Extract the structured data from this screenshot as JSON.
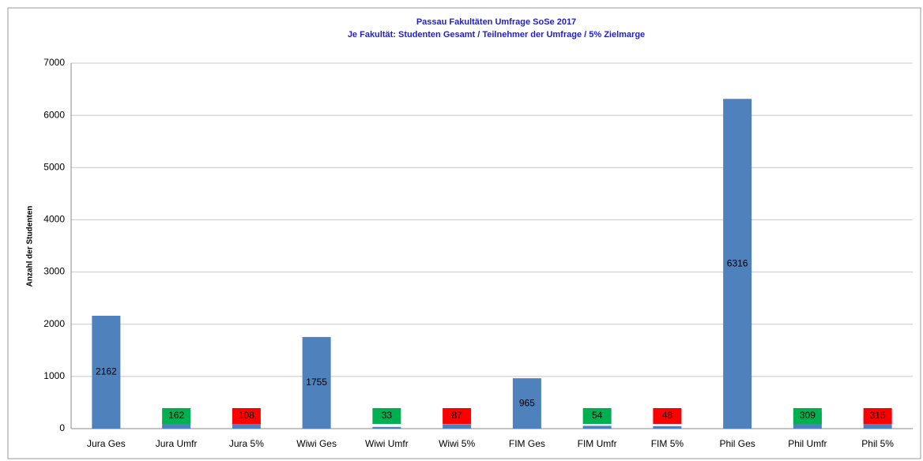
{
  "chart_data": {
    "type": "bar",
    "title": "Passau Fakultäten Umfrage SoSe 2017",
    "subtitle": "Je Fakultät:  Studenten Gesamt / Teilnehmer der Umfrage / 5% Zielmarge",
    "y_label": "Anzahl der Studenten",
    "categories": [
      "Jura Ges",
      "Jura Umfr",
      "Jura 5%",
      "Wiwi Ges",
      "Wiwi Umfr",
      "Wiwi 5%",
      "FIM Ges",
      "FIM Umfr",
      "FIM 5%",
      "Phil Ges",
      "Phil Umfr",
      "Phil 5%"
    ],
    "values": [
      2162,
      162,
      108,
      1755,
      33,
      87,
      965,
      54,
      48,
      6316,
      309,
      315
    ],
    "color": "#4f81bd",
    "value_label_colors": [
      null,
      "#00b050",
      "#ff0000",
      null,
      "#00b050",
      "#ff0000",
      null,
      "#00b050",
      "#ff0000",
      null,
      "#00b050",
      "#ff0000"
    ],
    "ylim": [
      0,
      7000
    ],
    "yticks": [
      0,
      1000,
      2000,
      3000,
      4000,
      5000,
      6000,
      7000
    ],
    "grid": true
  }
}
